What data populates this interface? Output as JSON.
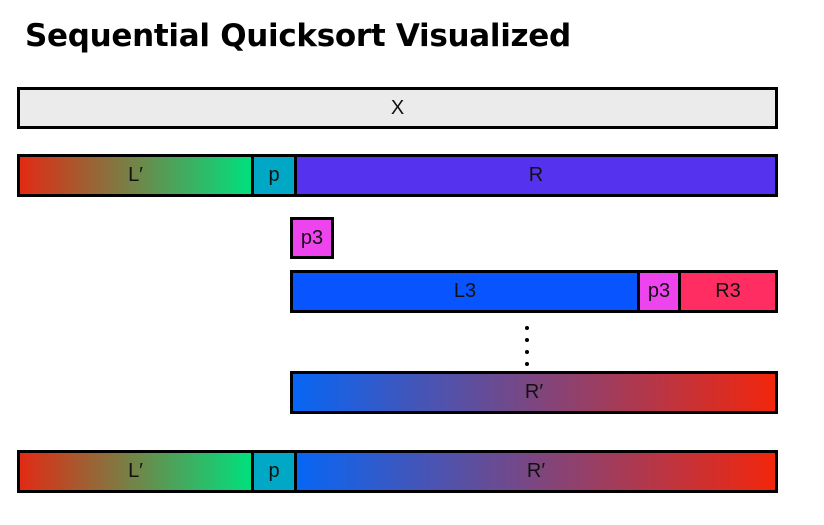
{
  "title": "Sequential Quicksort Visualized",
  "rows": {
    "x": {
      "label": "X",
      "color": "#ebebeb"
    },
    "partition1": {
      "left": {
        "label": "L′",
        "gradient": [
          "#e12b14",
          "#00e07e"
        ]
      },
      "pivot": {
        "label": "p",
        "color": "#00a8c6"
      },
      "right": {
        "label": "R",
        "color": "#5533ee"
      }
    },
    "pivot3_box": {
      "label": "p3",
      "color": "#ee44ee"
    },
    "partition3": {
      "left": {
        "label": "L3",
        "color": "#0855ff"
      },
      "pivot": {
        "label": "p3",
        "color": "#ee44ee"
      },
      "right": {
        "label": "R3",
        "color": "#ff2d62"
      }
    },
    "sorted_right": {
      "label": "R′",
      "gradient": [
        "#0766f4",
        "#f2260c"
      ]
    },
    "final": {
      "left": {
        "label": "L′",
        "gradient": [
          "#e12b14",
          "#00e07e"
        ]
      },
      "pivot": {
        "label": "p",
        "color": "#00a8c6"
      },
      "right": {
        "label": "R′",
        "gradient": [
          "#0766f4",
          "#f2260c"
        ]
      }
    }
  }
}
